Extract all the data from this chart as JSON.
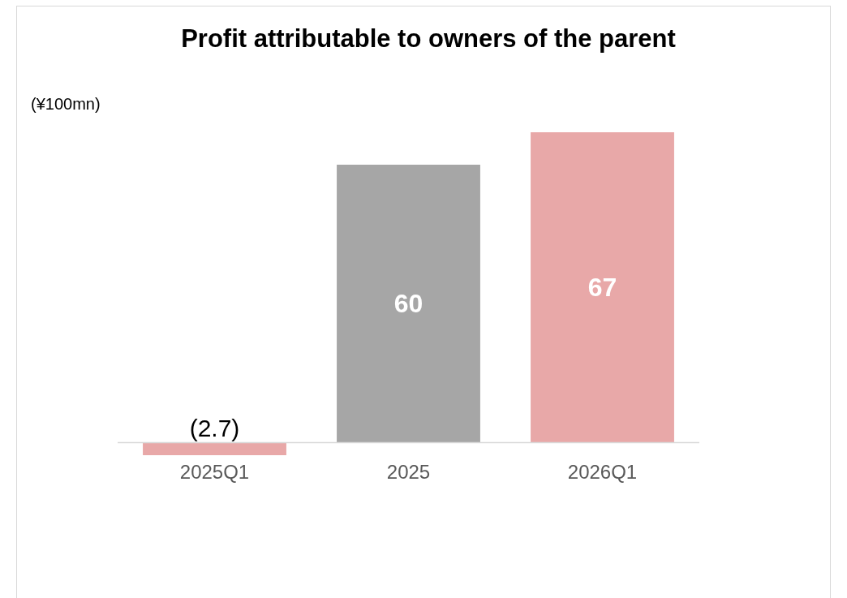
{
  "chart_data": {
    "type": "bar",
    "title": "Profit attributable to owners of the parent",
    "ylabel": "(¥100mn)",
    "categories": [
      "2025Q1",
      "2025",
      "2026Q1"
    ],
    "values": [
      -2.7,
      60,
      67
    ],
    "colors": [
      "#e8a8a8",
      "#a6a6a6",
      "#e8a8a8"
    ],
    "value_labels": [
      "(2.7)",
      "60",
      "67"
    ]
  }
}
